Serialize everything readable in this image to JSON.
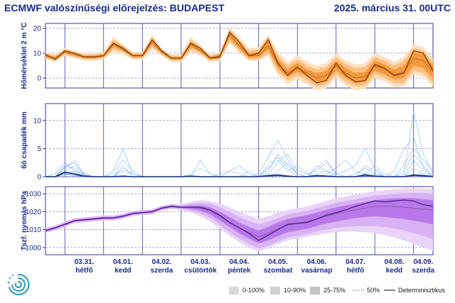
{
  "header": {
    "title_left": "ECMWF valószínűségi előrejelzés: BUDAPEST",
    "title_right": "2025. március 31. 00UTC"
  },
  "legend": {
    "items": [
      {
        "label": "0-100%",
        "color": "#d9d9d9"
      },
      {
        "label": "10-90%",
        "color": "#cfcfcf"
      },
      {
        "label": "25-75%",
        "color": "#c3c3c3"
      },
      {
        "label": "50%"
      },
      {
        "label": "Determinisztikus"
      }
    ]
  },
  "colors": {
    "axis_frame": "#3a3a8c",
    "temp_det": "#8a3a00",
    "temp_band_outer": "#fde0bf",
    "temp_band_mid": "#fbbf82",
    "temp_band_inner": "#f59a3c",
    "precip_det": "#0b2a7a",
    "precip_members": "#7fb6ee",
    "pres_det": "#4a1f8c",
    "pres_band_outer": "#ead4f8",
    "pres_band_mid": "#d8b2f3",
    "pres_band_inner": "#b878ea"
  },
  "chart_data": [
    {
      "type": "line",
      "ylabel": "Hőmérséklet 2 m °C",
      "ylim": [
        -4,
        22
      ],
      "yticks": [
        0,
        10,
        20
      ],
      "grid": true,
      "x_step_hours": 6,
      "deterministic": [
        9.5,
        7.5,
        11,
        10,
        8.5,
        8.5,
        9,
        14,
        12,
        9,
        9,
        15.5,
        11,
        8,
        8,
        14,
        12,
        8,
        8.5,
        18.5,
        14.5,
        9,
        10,
        15.5,
        6,
        1,
        4.5,
        1,
        -2,
        -1,
        6,
        1,
        -1.5,
        -1,
        5.5,
        4,
        1,
        2,
        11,
        10,
        3
      ],
      "median": [
        9,
        8,
        10.5,
        9.5,
        8.5,
        8.5,
        9,
        13.5,
        11.5,
        9,
        9,
        14.5,
        10.5,
        8,
        8,
        13.5,
        11,
        8,
        9,
        17.5,
        13,
        9,
        9,
        13,
        5.5,
        2,
        4,
        2,
        0,
        1,
        5,
        2,
        0,
        0.5,
        5,
        3.5,
        1.5,
        2.5,
        8,
        7,
        2.5
      ],
      "p25": [
        8.5,
        7.5,
        10,
        9,
        8,
        8,
        8.5,
        12.5,
        11,
        8.5,
        8.5,
        13.5,
        10,
        7.5,
        7.5,
        12.5,
        10.5,
        7.5,
        8,
        16,
        12,
        8,
        8.5,
        11.5,
        4,
        0.5,
        2.5,
        0.5,
        -2,
        -1,
        3,
        0,
        -2,
        -1.5,
        3,
        1.5,
        -0.5,
        0,
        5,
        4,
        0
      ],
      "p75": [
        9.5,
        8.5,
        11,
        10,
        9,
        9,
        9.5,
        14.5,
        12.5,
        9.5,
        9.5,
        15.5,
        11,
        8.5,
        8.5,
        14.5,
        12,
        8.5,
        9.5,
        18.5,
        14.5,
        10,
        10.5,
        15,
        7.5,
        3.5,
        6,
        3.5,
        2,
        3,
        7,
        4,
        2,
        2.5,
        7,
        5.5,
        3.5,
        5,
        10.5,
        9.5,
        5
      ],
      "p10": [
        8,
        7,
        9.5,
        8.5,
        7.5,
        7.5,
        8,
        11.5,
        10.5,
        8,
        8,
        12.5,
        9.5,
        7,
        7,
        11.5,
        10,
        7,
        7.5,
        15,
        11,
        7.5,
        7.5,
        10,
        2.5,
        -1,
        1,
        -1,
        -3.5,
        -2.5,
        1.5,
        -1.5,
        -3.5,
        -3,
        1.5,
        0,
        -2,
        -2,
        3,
        2,
        -2
      ],
      "p90": [
        10,
        9,
        11.5,
        10.5,
        9.5,
        9.5,
        10,
        15.5,
        13,
        10,
        10,
        16.5,
        11.5,
        9,
        9,
        15.5,
        12.5,
        9,
        10,
        19.5,
        15.5,
        11,
        11.5,
        16.5,
        9,
        5,
        7.5,
        5,
        3.5,
        4.5,
        8.5,
        5.5,
        4,
        4.5,
        8.5,
        7,
        5,
        7,
        12,
        11,
        6.5
      ],
      "min": [
        7.5,
        6.5,
        9,
        8,
        7,
        7,
        7.5,
        10.5,
        9.5,
        7.5,
        7.5,
        11.5,
        9,
        6.5,
        6.5,
        10.5,
        9,
        6.5,
        7,
        14,
        10,
        7,
        7,
        9,
        1,
        -2.5,
        -0.5,
        -2.5,
        -5,
        -4,
        0,
        -3,
        -5,
        -4.5,
        0,
        -1.5,
        -3.5,
        -3.5,
        1.5,
        0.5,
        -3.5
      ],
      "max": [
        10.5,
        9.5,
        12,
        11,
        10,
        10,
        10.5,
        16.5,
        13.5,
        10.5,
        10.5,
        17.5,
        12,
        9.5,
        9.5,
        16.5,
        13,
        9.5,
        10.5,
        20.5,
        16.5,
        12,
        12.5,
        17.5,
        10.5,
        6.5,
        9,
        6.5,
        5,
        6,
        10,
        7,
        5.5,
        6,
        10,
        8.5,
        6.5,
        8.5,
        13.5,
        12.5,
        8
      ]
    },
    {
      "type": "line",
      "ylabel": "6ó csapadék mm",
      "ylim": [
        0,
        13
      ],
      "yticks": [
        0,
        5,
        10
      ],
      "grid": true,
      "x_step_hours": 6,
      "deterministic": [
        0,
        0,
        0.8,
        0.5,
        0.1,
        0,
        0,
        0,
        0.1,
        0,
        0,
        0,
        0,
        0,
        0,
        0.1,
        0,
        0,
        0,
        0,
        0,
        0,
        0,
        0.2,
        0.3,
        0.1,
        0,
        0,
        0.2,
        0.1,
        0,
        0,
        0,
        0.3,
        0.1,
        0,
        0,
        0,
        0.3,
        0.2,
        0
      ],
      "median": [
        0,
        0,
        0.5,
        0.3,
        0,
        0,
        0,
        0,
        0,
        0,
        0,
        0,
        0,
        0,
        0,
        0,
        0,
        0,
        0,
        0,
        0,
        0,
        0,
        0.1,
        0.2,
        0.1,
        0,
        0,
        0.1,
        0.1,
        0,
        0,
        0,
        0.1,
        0.1,
        0,
        0,
        0,
        0.2,
        0.1,
        0
      ],
      "members": [
        [
          0,
          0,
          1.5,
          3,
          0.5,
          0,
          0,
          1,
          5,
          0.5,
          0,
          0,
          0,
          0,
          0,
          0,
          3,
          0.5,
          0,
          0,
          0,
          0,
          0,
          1,
          4,
          2,
          0.5,
          0,
          1.5,
          3,
          0.5,
          0,
          0,
          2,
          1,
          0,
          0,
          0,
          3,
          1,
          0
        ],
        [
          0,
          0,
          2,
          1.5,
          0.2,
          0,
          0,
          0.5,
          3,
          1,
          0,
          0,
          0,
          0,
          0,
          0,
          0,
          0,
          0.5,
          1,
          0.5,
          0,
          0,
          2,
          3.5,
          1.5,
          0,
          0,
          0.5,
          1,
          0.5,
          0,
          0.5,
          1.5,
          0.5,
          0,
          0,
          0.5,
          11.5,
          4,
          0.5
        ],
        [
          0,
          0,
          1,
          2,
          0.5,
          0,
          0,
          0,
          1.5,
          0.5,
          0,
          0,
          0,
          0,
          0,
          0,
          0,
          0,
          0,
          0,
          0,
          0,
          0.5,
          3.5,
          6.5,
          3,
          0.5,
          0,
          0,
          0.5,
          1.5,
          3,
          1,
          0.5,
          0,
          0,
          1,
          5,
          7,
          1.5,
          0
        ],
        [
          0,
          0.5,
          2.5,
          1,
          0,
          0,
          0,
          0,
          0,
          0,
          0,
          0,
          0,
          0,
          0,
          0.5,
          1.5,
          0.5,
          0,
          0,
          0,
          1,
          0,
          0.5,
          2.5,
          4,
          1,
          0.5,
          1,
          2.5,
          0.5,
          0,
          0,
          0.5,
          2,
          0.5,
          0,
          2,
          5,
          3,
          1
        ],
        [
          0,
          0,
          0.5,
          1,
          0.5,
          0,
          0,
          0,
          2,
          0,
          0,
          0,
          0,
          0,
          0,
          0,
          0,
          0,
          0,
          0,
          0,
          0,
          0,
          1.5,
          3,
          1,
          2,
          0.5,
          0,
          0,
          0.5,
          1,
          2,
          5,
          1.5,
          0,
          0,
          0,
          1.5,
          0.5,
          0
        ],
        [
          0,
          0,
          1.8,
          2.5,
          0.3,
          0,
          0,
          0,
          1,
          0.5,
          0,
          0,
          0,
          0,
          0,
          0,
          0,
          0,
          0,
          1,
          2,
          0.5,
          0,
          0,
          1,
          2.5,
          0.5,
          0,
          2,
          1,
          0,
          0,
          0,
          0.5,
          0.5,
          0,
          0,
          1,
          4,
          2,
          0
        ]
      ]
    },
    {
      "type": "line",
      "ylabel": "Tszf. nyomás hPa",
      "ylim": [
        996,
        1034
      ],
      "yticks": [
        1000,
        1010,
        1020,
        1030
      ],
      "grid": true,
      "x_step_hours": 6,
      "deterministic": [
        1009.5,
        1011,
        1013,
        1015,
        1015.5,
        1016,
        1016.5,
        1016.5,
        1017.5,
        1019,
        1019.5,
        1020,
        1022,
        1023,
        1022.5,
        1022.5,
        1022.5,
        1021,
        1018,
        1014,
        1011,
        1008,
        1004,
        1007,
        1010,
        1013,
        1013.5,
        1014,
        1016,
        1018,
        1019.5,
        1021,
        1023,
        1024.5,
        1026,
        1025.5,
        1026,
        1026.5,
        1026,
        1024,
        1023
      ],
      "median": [
        1009.5,
        1011,
        1013,
        1015,
        1015.5,
        1016,
        1016.5,
        1016.5,
        1017.5,
        1019,
        1019.5,
        1020,
        1022,
        1023,
        1022.5,
        1022.5,
        1022,
        1020.5,
        1017.5,
        1014,
        1011,
        1008.5,
        1006,
        1008,
        1010.5,
        1012.5,
        1013.5,
        1014.5,
        1016,
        1017.5,
        1019,
        1020,
        1021,
        1022,
        1023,
        1023,
        1023,
        1022.5,
        1022,
        1021.5,
        1021
      ],
      "p25": [
        1009,
        1010.5,
        1012.5,
        1014.5,
        1015,
        1015.5,
        1016,
        1016,
        1017,
        1018.5,
        1019,
        1019.5,
        1021.5,
        1022.5,
        1022,
        1021.5,
        1020.5,
        1018.5,
        1015,
        1011.5,
        1008,
        1005,
        1002.5,
        1004,
        1006.5,
        1008.5,
        1009.5,
        1010.5,
        1012,
        1013.5,
        1014.5,
        1015.5,
        1016.5,
        1017,
        1017.5,
        1017,
        1016.5,
        1016,
        1015,
        1014,
        1013
      ],
      "p75": [
        1010,
        1011.5,
        1013.5,
        1015.5,
        1016,
        1016.5,
        1017,
        1017,
        1018,
        1019.5,
        1020,
        1020.5,
        1022.5,
        1023.5,
        1023,
        1023.5,
        1023.5,
        1022.5,
        1020,
        1017,
        1014,
        1011.5,
        1009.5,
        1011.5,
        1014,
        1016,
        1017,
        1018,
        1019.5,
        1021,
        1022.5,
        1023.5,
        1024.5,
        1025.5,
        1026.5,
        1027,
        1027.5,
        1027.5,
        1027.5,
        1027,
        1026.5
      ],
      "p10": [
        1008.5,
        1010,
        1012,
        1014,
        1014.5,
        1015,
        1015.5,
        1015.5,
        1016.5,
        1018,
        1018.5,
        1019,
        1021,
        1022,
        1021.5,
        1020.5,
        1019,
        1016.5,
        1012.5,
        1008.5,
        1005,
        1002,
        999.5,
        1001,
        1003.5,
        1005.5,
        1006.5,
        1007.5,
        1009,
        1010,
        1011,
        1011.5,
        1012,
        1012,
        1012,
        1011.5,
        1010.5,
        1009.5,
        1008,
        1006.5,
        1005
      ],
      "p90": [
        1010.5,
        1012,
        1014,
        1016,
        1016.5,
        1017,
        1017.5,
        1017.5,
        1018.5,
        1020,
        1020.5,
        1021,
        1023,
        1024,
        1023.5,
        1024.5,
        1025,
        1024.5,
        1022.5,
        1020,
        1017,
        1015,
        1013,
        1014.5,
        1016.5,
        1018.5,
        1019.5,
        1020.5,
        1022,
        1023.5,
        1025,
        1026,
        1027,
        1028,
        1029,
        1029.5,
        1030,
        1030.5,
        1030.5,
        1030.5,
        1030
      ],
      "min": [
        1008,
        1009.5,
        1011.5,
        1013.5,
        1014,
        1014.5,
        1015,
        1015,
        1016,
        1017.5,
        1018,
        1018.5,
        1020.5,
        1021.5,
        1021,
        1019.5,
        1017.5,
        1014.5,
        1010.5,
        1006.5,
        1003,
        1000,
        998,
        999.5,
        1002,
        1004,
        1005,
        1006,
        1007,
        1008,
        1008.5,
        1009,
        1009,
        1008.5,
        1008,
        1007,
        1005.5,
        1004,
        1002,
        1000,
        998.5
      ],
      "max": [
        1011,
        1012.5,
        1014.5,
        1016.5,
        1017,
        1017.5,
        1018,
        1018,
        1019,
        1020.5,
        1021,
        1021.5,
        1023.5,
        1024.5,
        1024,
        1025.5,
        1026.5,
        1026,
        1024.5,
        1022.5,
        1020,
        1018,
        1016,
        1017.5,
        1019.5,
        1021,
        1022,
        1023,
        1024.5,
        1026,
        1027.5,
        1028.5,
        1029.5,
        1030.5,
        1031.5,
        1032,
        1032.5,
        1033,
        1033,
        1033,
        1032.5
      ]
    }
  ],
  "x_axis": {
    "days": [
      {
        "date": "03.31.",
        "weekday": "hétfő"
      },
      {
        "date": "04.01.",
        "weekday": "kedd"
      },
      {
        "date": "04.02.",
        "weekday": "szerda"
      },
      {
        "date": "04.03.",
        "weekday": "csütörtök"
      },
      {
        "date": "04.04.",
        "weekday": "péntek"
      },
      {
        "date": "04.05.",
        "weekday": "szombat"
      },
      {
        "date": "04.06.",
        "weekday": "vasárnap"
      },
      {
        "date": "04.07.",
        "weekday": "hétfő"
      },
      {
        "date": "04.08.",
        "weekday": "kedd"
      },
      {
        "date": "04.09.",
        "weekday": "szerda"
      }
    ]
  }
}
